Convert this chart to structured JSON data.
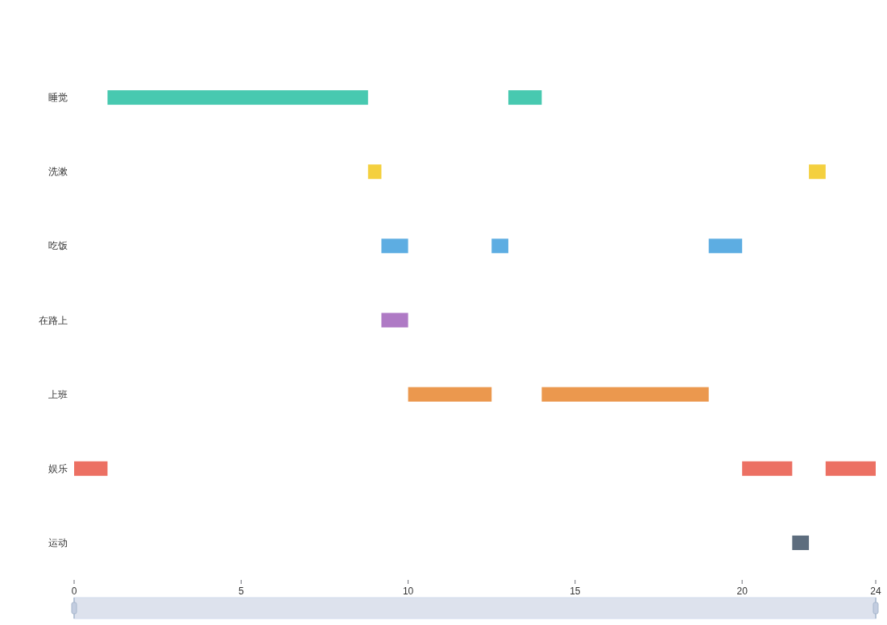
{
  "chart_data": {
    "type": "bar",
    "orientation": "horizontal",
    "categories": [
      "睡觉",
      "洗漱",
      "吃饭",
      "在路上",
      "上班",
      "娱乐",
      "运动"
    ],
    "series": [
      {
        "values": [
          7.8,
          0.4,
          0.8,
          0.8,
          2.5,
          1,
          0.5
        ],
        "base": [
          1,
          8.8,
          9.2,
          9.2,
          10,
          0,
          21.5
        ],
        "colors": [
          "#48c9b0",
          "#f4d03f",
          "#5dade2",
          "#af7ac5",
          "#eb984e",
          "#ec7063",
          "#5d6d7e"
        ]
      },
      {
        "values": [
          1,
          0.5,
          0.5,
          null,
          5,
          1.5,
          null
        ],
        "base": [
          13,
          22,
          12.5,
          null,
          14,
          20,
          null
        ],
        "colors": [
          "#48c9b0",
          "#f4d03f",
          "#5dade2",
          null,
          "#eb984e",
          "#ec7063",
          null
        ]
      },
      {
        "values": [
          null,
          null,
          1,
          null,
          null,
          1.5,
          null
        ],
        "base": [
          null,
          null,
          19,
          null,
          null,
          22.5,
          null
        ],
        "colors": [
          null,
          null,
          "#5dade2",
          null,
          null,
          "#ec7063",
          null
        ]
      }
    ],
    "xlim": [
      0,
      24
    ],
    "xticks": [
      0,
      5,
      10,
      15,
      20,
      24
    ]
  }
}
